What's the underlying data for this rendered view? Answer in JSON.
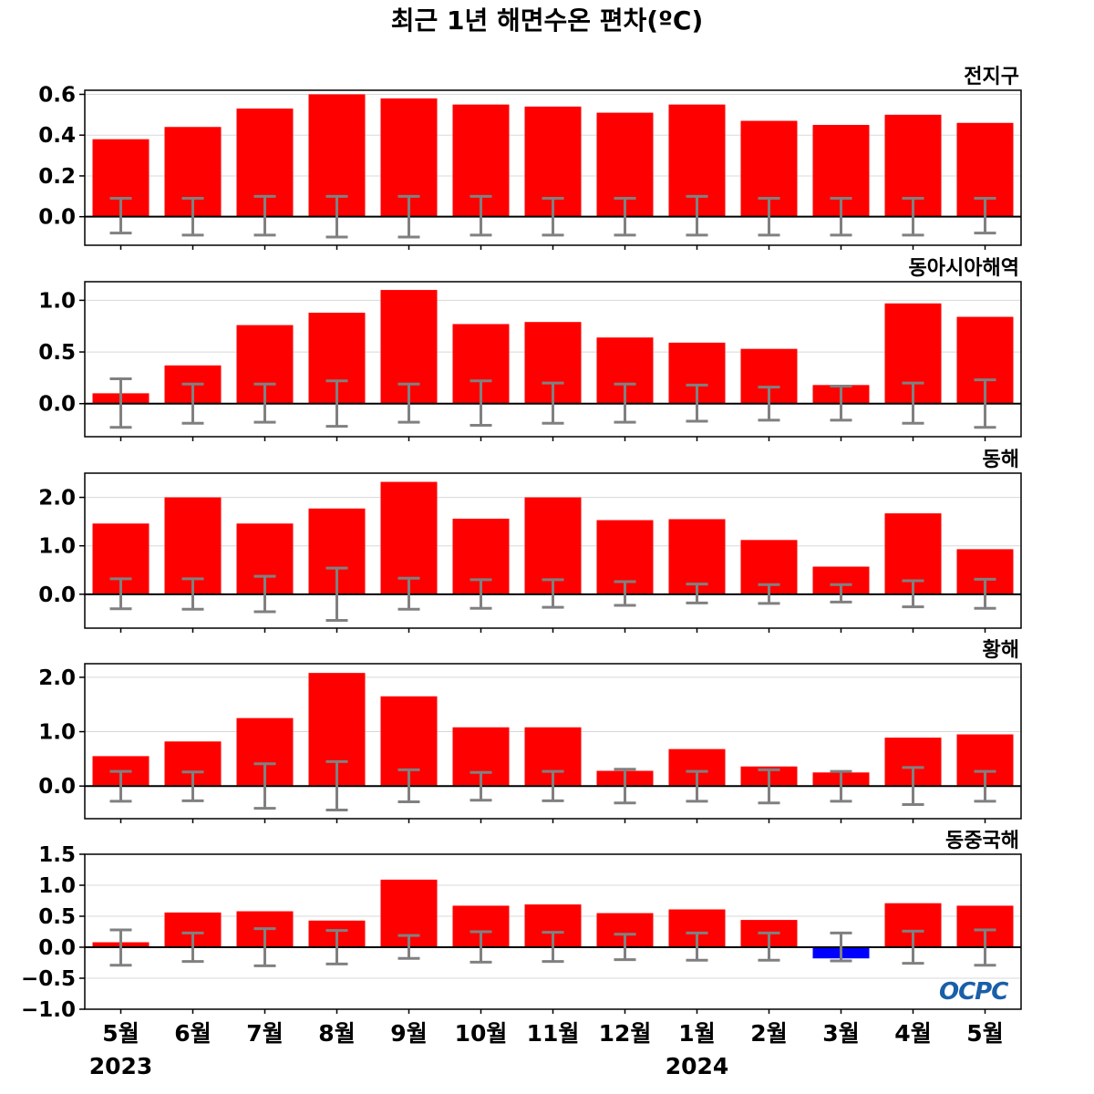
{
  "chart_data": {
    "type": "bar",
    "title": "최근 1년 해면수온 편차(ºC)",
    "categories": [
      "5월",
      "6월",
      "7월",
      "8월",
      "9월",
      "10월",
      "11월",
      "12월",
      "1월",
      "2월",
      "3월",
      "4월",
      "5월"
    ],
    "year_labels": [
      {
        "index": 0,
        "label": "2023"
      },
      {
        "index": 8,
        "label": "2024"
      }
    ],
    "colors": {
      "positive": "#ff0000",
      "negative": "#0000ff",
      "errorbar": "#808080",
      "zero_line": "#000000",
      "grid": "#d8d8d8"
    },
    "grid": true,
    "panels": [
      {
        "name": "전지구",
        "ylim": [
          -0.14,
          0.62
        ],
        "yticks": [
          0.0,
          0.2,
          0.4,
          0.6
        ],
        "ytick_labels": [
          "0.0",
          "0.2",
          "0.4",
          "0.6"
        ],
        "values": [
          0.38,
          0.44,
          0.53,
          0.6,
          0.58,
          0.55,
          0.54,
          0.51,
          0.55,
          0.47,
          0.45,
          0.5,
          0.46
        ],
        "error_high": [
          0.09,
          0.09,
          0.1,
          0.1,
          0.1,
          0.1,
          0.09,
          0.09,
          0.1,
          0.09,
          0.09,
          0.09,
          0.09
        ],
        "error_low": [
          -0.08,
          -0.09,
          -0.09,
          -0.1,
          -0.1,
          -0.09,
          -0.09,
          -0.09,
          -0.09,
          -0.09,
          -0.09,
          -0.09,
          -0.08
        ]
      },
      {
        "name": "동아시아해역",
        "ylim": [
          -0.32,
          1.18
        ],
        "yticks": [
          0.0,
          0.5,
          1.0
        ],
        "ytick_labels": [
          "0.0",
          "0.5",
          "1.0"
        ],
        "values": [
          0.1,
          0.37,
          0.76,
          0.88,
          1.1,
          0.77,
          0.79,
          0.64,
          0.59,
          0.53,
          0.18,
          0.97,
          0.84
        ],
        "error_high": [
          0.24,
          0.19,
          0.19,
          0.22,
          0.19,
          0.22,
          0.2,
          0.19,
          0.18,
          0.16,
          0.17,
          0.2,
          0.23
        ],
        "error_low": [
          -0.23,
          -0.19,
          -0.18,
          -0.22,
          -0.18,
          -0.21,
          -0.19,
          -0.18,
          -0.17,
          -0.16,
          -0.16,
          -0.19,
          -0.23
        ]
      },
      {
        "name": "동해",
        "ylim": [
          -0.7,
          2.5
        ],
        "yticks": [
          0.0,
          1.0,
          2.0
        ],
        "ytick_labels": [
          "0.0",
          "1.0",
          "2.0"
        ],
        "values": [
          1.46,
          2.0,
          1.46,
          1.77,
          2.32,
          1.56,
          2.0,
          1.53,
          1.55,
          1.12,
          0.57,
          1.67,
          0.93
        ],
        "error_high": [
          0.32,
          0.32,
          0.37,
          0.54,
          0.33,
          0.3,
          0.3,
          0.26,
          0.21,
          0.2,
          0.2,
          0.28,
          0.31
        ],
        "error_low": [
          -0.3,
          -0.31,
          -0.36,
          -0.54,
          -0.31,
          -0.29,
          -0.27,
          -0.23,
          -0.18,
          -0.19,
          -0.16,
          -0.26,
          -0.29
        ]
      },
      {
        "name": "황해",
        "ylim": [
          -0.6,
          2.25
        ],
        "yticks": [
          0.0,
          1.0,
          2.0
        ],
        "ytick_labels": [
          "0.0",
          "1.0",
          "2.0"
        ],
        "values": [
          0.55,
          0.82,
          1.25,
          2.08,
          1.65,
          1.08,
          1.08,
          0.28,
          0.68,
          0.36,
          0.25,
          0.89,
          0.95
        ],
        "error_high": [
          0.27,
          0.26,
          0.41,
          0.45,
          0.3,
          0.25,
          0.27,
          0.31,
          0.27,
          0.3,
          0.27,
          0.34,
          0.27
        ],
        "error_low": [
          -0.28,
          -0.27,
          -0.41,
          -0.44,
          -0.29,
          -0.26,
          -0.27,
          -0.31,
          -0.28,
          -0.31,
          -0.28,
          -0.34,
          -0.28
        ]
      },
      {
        "name": "동중국해",
        "ylim": [
          -1.0,
          1.5
        ],
        "yticks": [
          -1.0,
          -0.5,
          0.0,
          0.5,
          1.0,
          1.5
        ],
        "ytick_labels": [
          "−1.0",
          "−0.5",
          "0.0",
          "0.5",
          "1.0",
          "1.5"
        ],
        "values": [
          0.08,
          0.56,
          0.58,
          0.43,
          1.09,
          0.67,
          0.69,
          0.55,
          0.61,
          0.44,
          -0.18,
          0.71,
          0.67
        ],
        "error_high": [
          0.28,
          0.23,
          0.3,
          0.27,
          0.19,
          0.25,
          0.24,
          0.21,
          0.23,
          0.23,
          0.23,
          0.26,
          0.28
        ],
        "error_low": [
          -0.29,
          -0.23,
          -0.3,
          -0.27,
          -0.18,
          -0.24,
          -0.23,
          -0.2,
          -0.21,
          -0.21,
          -0.22,
          -0.26,
          -0.29
        ]
      }
    ]
  },
  "logo_text": "OCPC"
}
